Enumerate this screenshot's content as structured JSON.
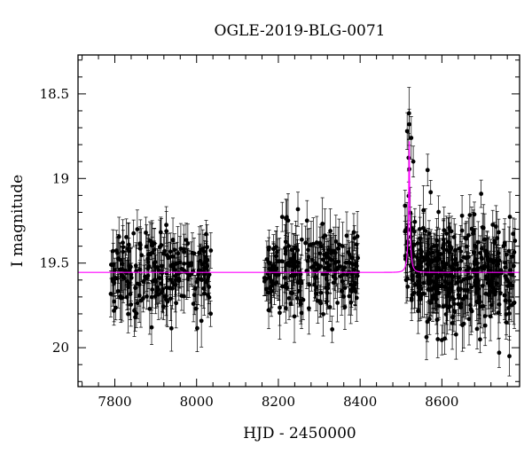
{
  "chart_data": {
    "type": "scatter",
    "title": "OGLE-2019-BLG-0071",
    "xlabel": "HJD - 2450000",
    "ylabel": "I magnitude",
    "xlim": [
      7710,
      8790
    ],
    "ylim": [
      20.23,
      18.27
    ],
    "y_inverted": true,
    "grid": false,
    "x_ticks": [
      "7800",
      "8000",
      "8200",
      "8400",
      "8600"
    ],
    "x_tick_values": [
      7800,
      8000,
      8200,
      8400,
      8600
    ],
    "y_ticks": [
      "18.5",
      "19",
      "19.5",
      "20"
    ],
    "y_tick_values": [
      18.5,
      19.0,
      19.5,
      20.0
    ],
    "series": [
      {
        "kind": "observations",
        "marker": "filled-circle-with-errorbars",
        "color": "#000000",
        "segments": [
          {
            "x_range": [
              7790,
              8035
            ],
            "baseline_mag": 19.56,
            "scatter": 0.12,
            "count": 220
          },
          {
            "x_range": [
              8165,
              8395
            ],
            "baseline_mag": 19.55,
            "scatter": 0.12,
            "count": 230
          },
          {
            "x_range": [
              8508,
              8780
            ],
            "baseline_mag": 19.52,
            "scatter": 0.14,
            "count": 420
          }
        ],
        "peak": {
          "t0": 8520,
          "mag": 18.75
        },
        "notable_points": [
          {
            "x": 7855,
            "y": 19.3
          },
          {
            "x": 7850,
            "y": 19.82
          },
          {
            "x": 7890,
            "y": 19.88
          },
          {
            "x": 8515,
            "y": 18.72
          },
          {
            "x": 8520,
            "y": 18.68
          },
          {
            "x": 8525,
            "y": 18.76
          },
          {
            "x": 8530,
            "y": 18.9
          },
          {
            "x": 8565,
            "y": 18.95
          },
          {
            "x": 8590,
            "y": 19.95
          },
          {
            "x": 8740,
            "y": 20.03
          },
          {
            "x": 8765,
            "y": 20.05
          }
        ]
      },
      {
        "kind": "model",
        "style": "line",
        "color": "#ff00ff",
        "baseline_mag": 19.555,
        "t0": 8520,
        "peak_mag": 18.78,
        "tE": 7,
        "u0": 0.14
      }
    ]
  }
}
